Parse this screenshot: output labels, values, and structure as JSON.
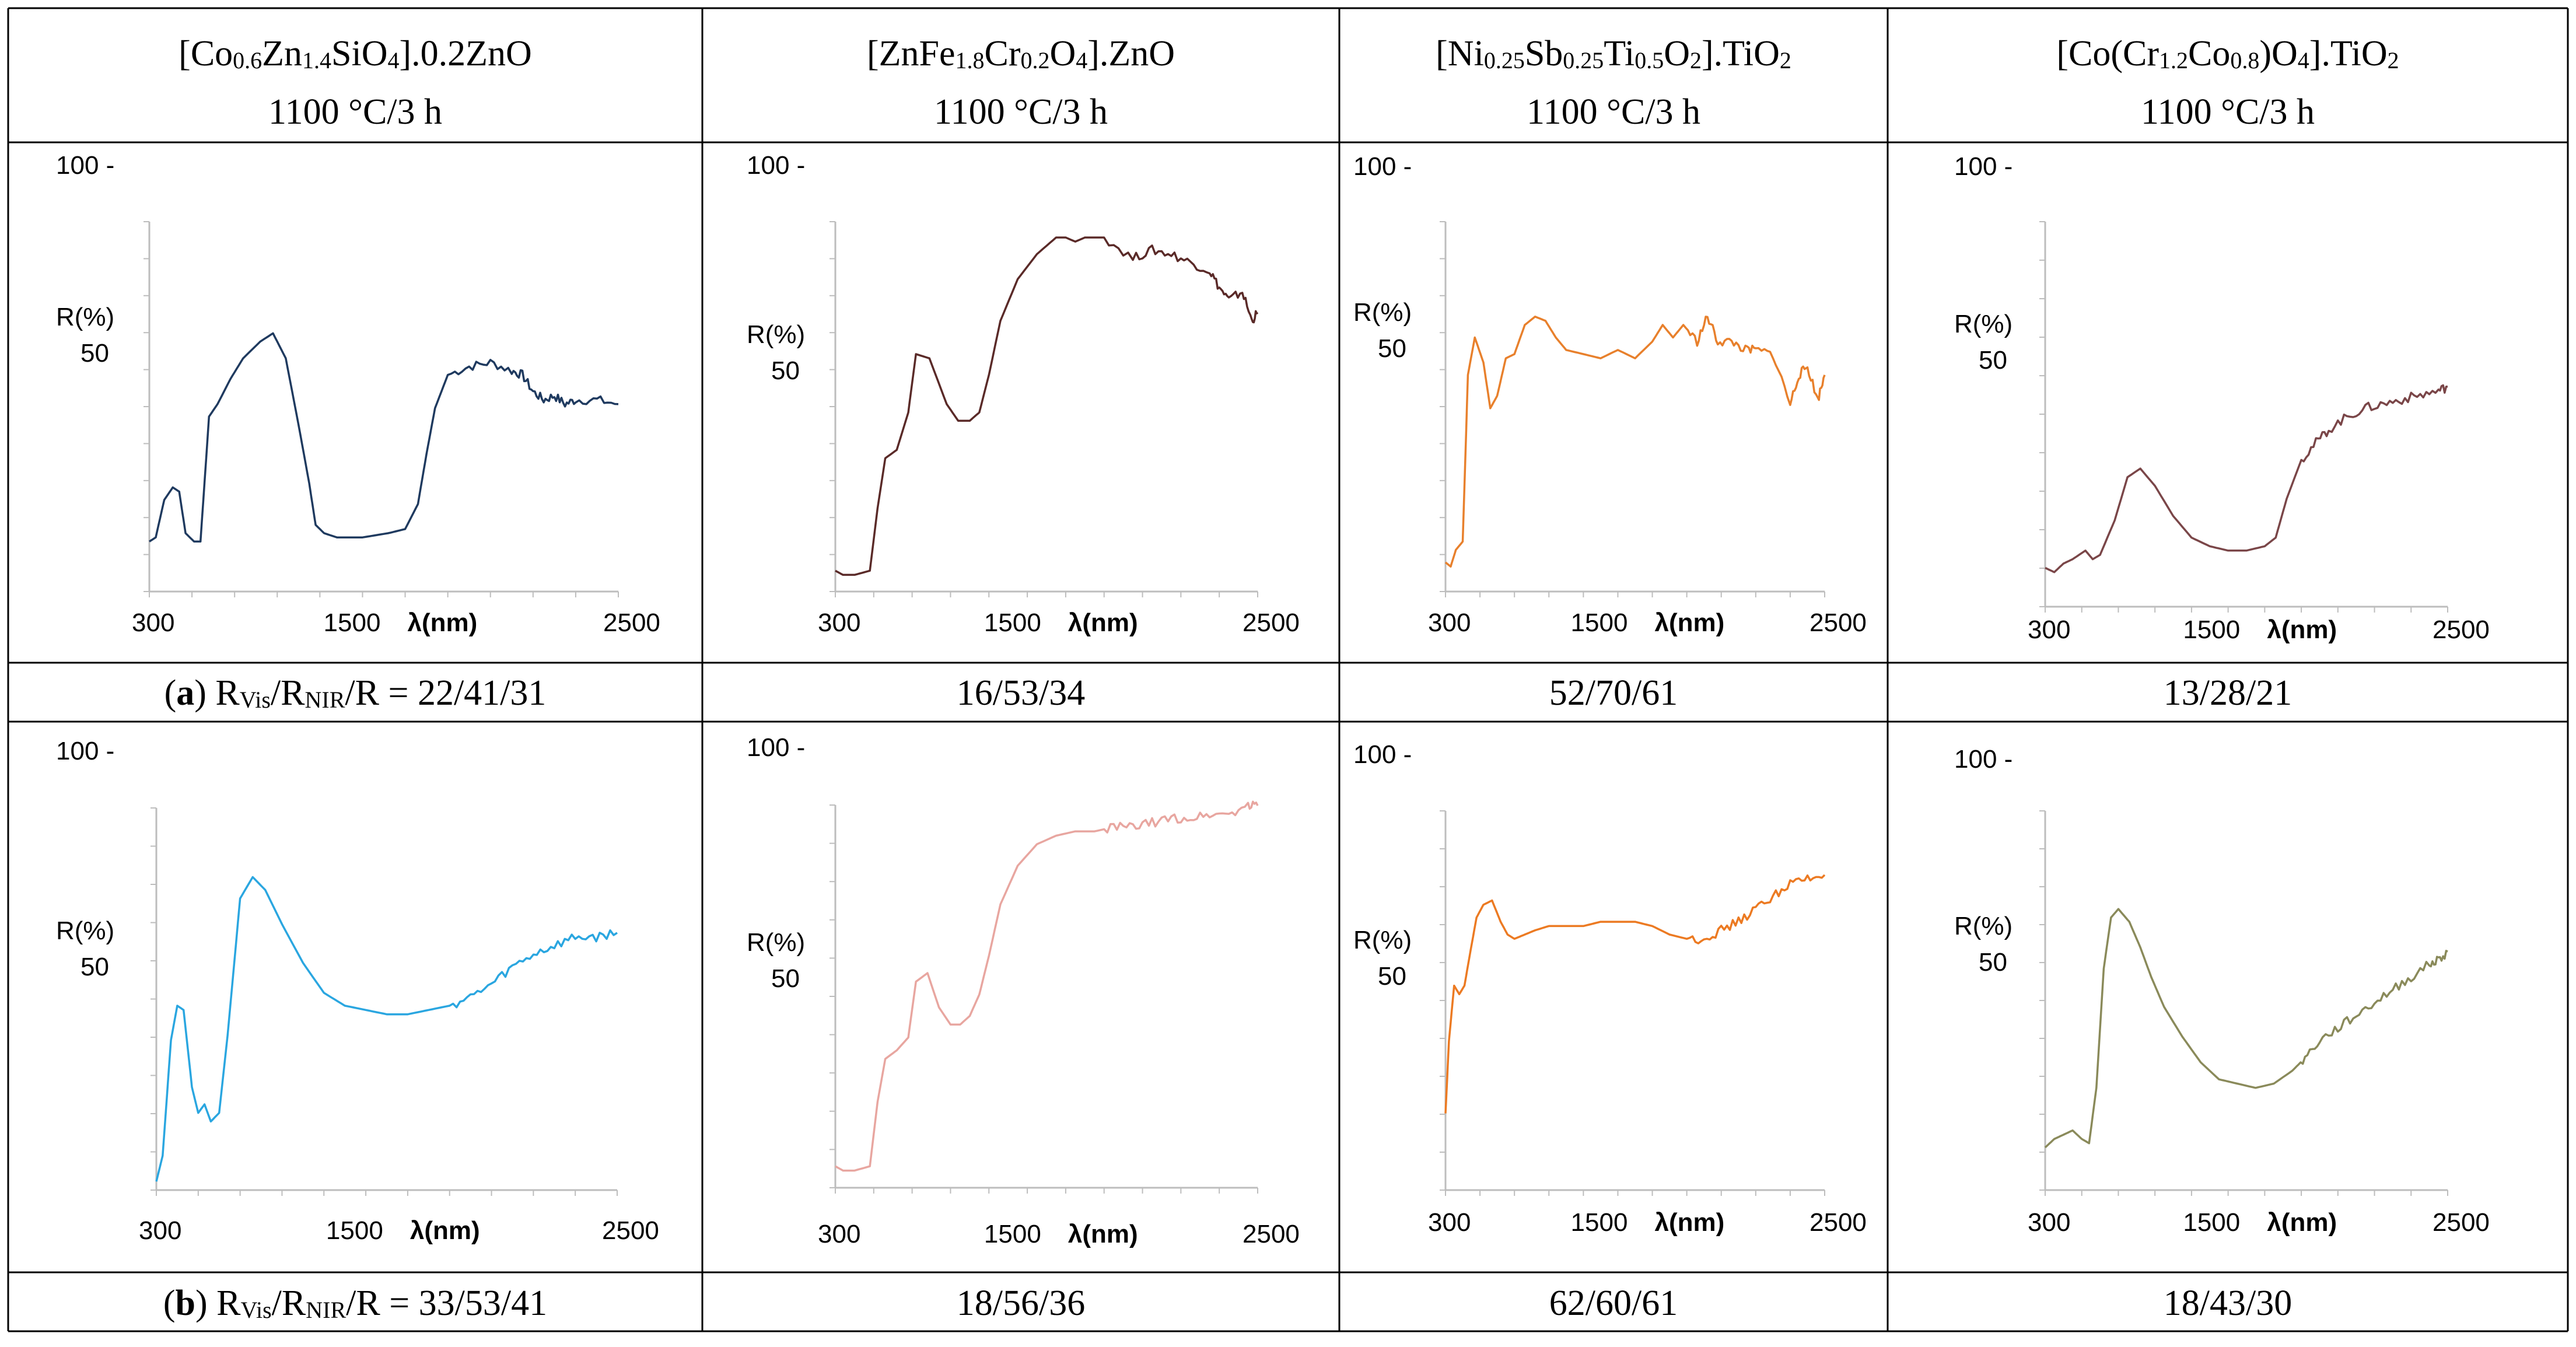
{
  "table": {
    "columns": [
      {
        "title": "[Co0.6Zn1.4SiO4].0.2ZnO",
        "condition": "1100 °C/3 h"
      },
      {
        "title": "[ZnFe1.8Cr0.2O4].ZnO",
        "condition": "1100 °C/3 h"
      },
      {
        "title": "[Ni0.25Sb0.25Ti0.5O2].TiO2",
        "condition": "1100 °C/3 h"
      },
      {
        "title": "[Co(Cr1.2Co0.8)O4].TiO2",
        "condition": "1100 °C/3 h"
      }
    ],
    "rows": [
      {
        "label": "a",
        "caption_prefix": "RVis/RNIR/R = ",
        "values": [
          "22/41/31",
          "16/53/34",
          "52/70/61",
          "13/28/21"
        ]
      },
      {
        "label": "b",
        "caption_prefix": "RVis/RNIR/R = ",
        "values": [
          "33/53/41",
          "18/56/36",
          "62/60/61",
          "18/43/30"
        ]
      }
    ]
  },
  "chart_data": [
    {
      "type": "line",
      "panel": "a-1",
      "title": "[Co0.6Zn1.4SiO4].0.2ZnO",
      "xlabel": "λ(nm)",
      "ylabel": "R(%)",
      "xlim": [
        300,
        2500
      ],
      "ylim": [
        0,
        100
      ],
      "xticks": [
        "300",
        "1500",
        "2500"
      ],
      "yticks": [
        "100 -",
        "50"
      ],
      "color": "#1f3a5f",
      "x": [
        300,
        330,
        370,
        410,
        440,
        470,
        510,
        540,
        580,
        620,
        680,
        740,
        820,
        880,
        940,
        1000,
        1050,
        1080,
        1120,
        1180,
        1300,
        1420,
        1500,
        1560,
        1600,
        1640,
        1700,
        1800,
        1900,
        2000,
        2050,
        2100,
        2150,
        2200,
        2250,
        2300,
        2400,
        2500
      ],
      "y": [
        12,
        13,
        22,
        25,
        24,
        14,
        12,
        12,
        42,
        45,
        51,
        56,
        60,
        62,
        56,
        40,
        26,
        16,
        14,
        13,
        13,
        14,
        15,
        21,
        33,
        44,
        52,
        54,
        55,
        53,
        52,
        48,
        46,
        47,
        45,
        46,
        46,
        45
      ]
    },
    {
      "type": "line",
      "panel": "a-2",
      "title": "[ZnFe1.8Cr0.2O4].ZnO",
      "xlabel": "λ(nm)",
      "ylabel": "R(%)",
      "xlim": [
        300,
        2500
      ],
      "ylim": [
        0,
        100
      ],
      "xticks": [
        "300",
        "1500",
        "2500"
      ],
      "yticks": [
        "100 -",
        "50"
      ],
      "color": "#5a2a28",
      "x": [
        300,
        340,
        400,
        480,
        520,
        560,
        620,
        680,
        720,
        790,
        880,
        940,
        1000,
        1050,
        1100,
        1160,
        1250,
        1350,
        1450,
        1500,
        1550,
        1600,
        1700,
        1850,
        1950,
        2050,
        2150,
        2250,
        2300,
        2350,
        2420,
        2470,
        2500
      ],
      "y": [
        5,
        4,
        4,
        5,
        20,
        32,
        34,
        43,
        57,
        56,
        45,
        41,
        41,
        43,
        52,
        65,
        75,
        81,
        85,
        85,
        84,
        85,
        85,
        80,
        82,
        81,
        79,
        77,
        73,
        70,
        72,
        65,
        67
      ]
    },
    {
      "type": "line",
      "panel": "a-3",
      "title": "[Ni0.25Sb0.25Ti0.5O2].TiO2",
      "xlabel": "λ(nm)",
      "ylabel": "R(%)",
      "xlim": [
        300,
        2500
      ],
      "ylim": [
        0,
        100
      ],
      "xticks": [
        "300",
        "1500",
        "2500"
      ],
      "yticks": [
        "100 -",
        "50"
      ],
      "color": "#e8802c",
      "x": [
        300,
        330,
        360,
        400,
        430,
        470,
        520,
        560,
        600,
        650,
        700,
        760,
        820,
        880,
        940,
        1000,
        1100,
        1200,
        1300,
        1400,
        1500,
        1560,
        1620,
        1680,
        1760,
        1820,
        1880,
        1960,
        2040,
        2100,
        2200,
        2300,
        2350,
        2400,
        2460,
        2500
      ],
      "y": [
        7,
        6,
        10,
        12,
        52,
        61,
        55,
        44,
        47,
        56,
        57,
        64,
        66,
        65,
        61,
        58,
        57,
        56,
        58,
        56,
        60,
        64,
        61,
        64,
        60,
        66,
        60,
        60,
        58,
        58,
        57,
        45,
        52,
        54,
        46,
        52
      ]
    },
    {
      "type": "line",
      "panel": "a-4",
      "title": "[Co(Cr1.2Co0.8)O4].TiO2",
      "xlabel": "λ(nm)",
      "ylabel": "R(%)",
      "xlim": [
        300,
        2500
      ],
      "ylim": [
        0,
        100
      ],
      "xticks": [
        "300",
        "1500",
        "2500"
      ],
      "yticks": [
        "100 -",
        "50"
      ],
      "color": "#7a4648",
      "x": [
        300,
        350,
        400,
        450,
        520,
        560,
        600,
        680,
        750,
        820,
        900,
        1000,
        1100,
        1200,
        1300,
        1400,
        1500,
        1560,
        1620,
        1700,
        1780,
        1850,
        1950,
        2050,
        2150,
        2250,
        2350,
        2450,
        2500
      ],
      "y": [
        9,
        8,
        10,
        11,
        13,
        11,
        12,
        20,
        30,
        32,
        28,
        21,
        16,
        14,
        13,
        13,
        14,
        16,
        25,
        34,
        38,
        41,
        44,
        46,
        47,
        48,
        49,
        50,
        51
      ]
    },
    {
      "type": "line",
      "panel": "b-1",
      "title": "[Co0.6Zn1.4SiO4].0.2ZnO",
      "xlabel": "λ(nm)",
      "ylabel": "R(%)",
      "xlim": [
        300,
        2500
      ],
      "ylim": [
        0,
        100
      ],
      "xticks": [
        "300",
        "1500",
        "2500"
      ],
      "yticks": [
        "100 -",
        "50"
      ],
      "color": "#2aa6e0",
      "x": [
        300,
        330,
        370,
        400,
        430,
        470,
        500,
        530,
        560,
        600,
        640,
        700,
        760,
        820,
        900,
        1000,
        1100,
        1200,
        1300,
        1400,
        1500,
        1600,
        1700,
        1800,
        1900,
        2000,
        2100,
        2200,
        2300,
        2400,
        2500
      ],
      "y": [
        2,
        8,
        35,
        43,
        42,
        24,
        18,
        20,
        16,
        18,
        36,
        68,
        73,
        70,
        62,
        53,
        46,
        43,
        42,
        41,
        41,
        42,
        43,
        45,
        48,
        52,
        55,
        57,
        59,
        59,
        60
      ]
    },
    {
      "type": "line",
      "panel": "b-2",
      "title": "[ZnFe1.8Cr0.2O4].ZnO",
      "xlabel": "λ(nm)",
      "ylabel": "R(%)",
      "xlim": [
        300,
        2500
      ],
      "ylim": [
        0,
        100
      ],
      "xticks": [
        "300",
        "1500",
        "2500"
      ],
      "yticks": [
        "100 -",
        "50"
      ],
      "color": "#e8a6a0",
      "x": [
        300,
        340,
        400,
        480,
        520,
        560,
        620,
        680,
        720,
        780,
        840,
        900,
        950,
        1000,
        1050,
        1100,
        1160,
        1250,
        1350,
        1450,
        1550,
        1650,
        1750,
        1850,
        1950,
        2050,
        2150,
        2250,
        2350,
        2450,
        2500
      ],
      "y": [
        5,
        4,
        4,
        5,
        20,
        30,
        32,
        35,
        48,
        50,
        42,
        38,
        38,
        40,
        45,
        54,
        66,
        75,
        80,
        82,
        83,
        83,
        84,
        84,
        85,
        86,
        86,
        87,
        87,
        89,
        89
      ]
    },
    {
      "type": "line",
      "panel": "b-3",
      "title": "[Ni0.25Sb0.25Ti0.5O2].TiO2",
      "xlabel": "λ(nm)",
      "ylabel": "R(%)",
      "xlim": [
        300,
        2500
      ],
      "ylim": [
        0,
        100
      ],
      "xticks": [
        "300",
        "1500",
        "2500"
      ],
      "yticks": [
        "100 -",
        "50"
      ],
      "color": "#ec7a22",
      "x": [
        300,
        320,
        350,
        380,
        410,
        440,
        480,
        520,
        570,
        620,
        660,
        700,
        760,
        820,
        900,
        1000,
        1100,
        1200,
        1300,
        1400,
        1500,
        1600,
        1700,
        1800,
        1900,
        2000,
        2100,
        2200,
        2300,
        2400,
        2500
      ],
      "y": [
        18,
        35,
        48,
        46,
        48,
        55,
        64,
        67,
        68,
        63,
        60,
        59,
        60,
        61,
        62,
        62,
        62,
        63,
        63,
        63,
        62,
        60,
        59,
        59,
        61,
        63,
        66,
        69,
        72,
        73,
        74
      ]
    },
    {
      "type": "line",
      "panel": "b-4",
      "title": "[Co(Cr1.2Co0.8)O4].TiO2",
      "xlabel": "λ(nm)",
      "ylabel": "R(%)",
      "xlim": [
        300,
        2500
      ],
      "ylim": [
        0,
        100
      ],
      "xticks": [
        "300",
        "1500",
        "2500"
      ],
      "yticks": [
        "100 -",
        "50"
      ],
      "color": "#8a8a5a",
      "x": [
        300,
        350,
        400,
        450,
        500,
        540,
        580,
        620,
        660,
        700,
        760,
        820,
        880,
        950,
        1050,
        1150,
        1250,
        1350,
        1450,
        1550,
        1650,
        1720,
        1800,
        1900,
        2000,
        2100,
        2200,
        2300,
        2400,
        2450,
        2500
      ],
      "y": [
        10,
        12,
        13,
        14,
        12,
        11,
        24,
        52,
        64,
        66,
        63,
        57,
        50,
        43,
        36,
        30,
        26,
        25,
        24,
        25,
        28,
        31,
        35,
        38,
        41,
        44,
        47,
        50,
        53,
        54,
        56
      ]
    }
  ]
}
